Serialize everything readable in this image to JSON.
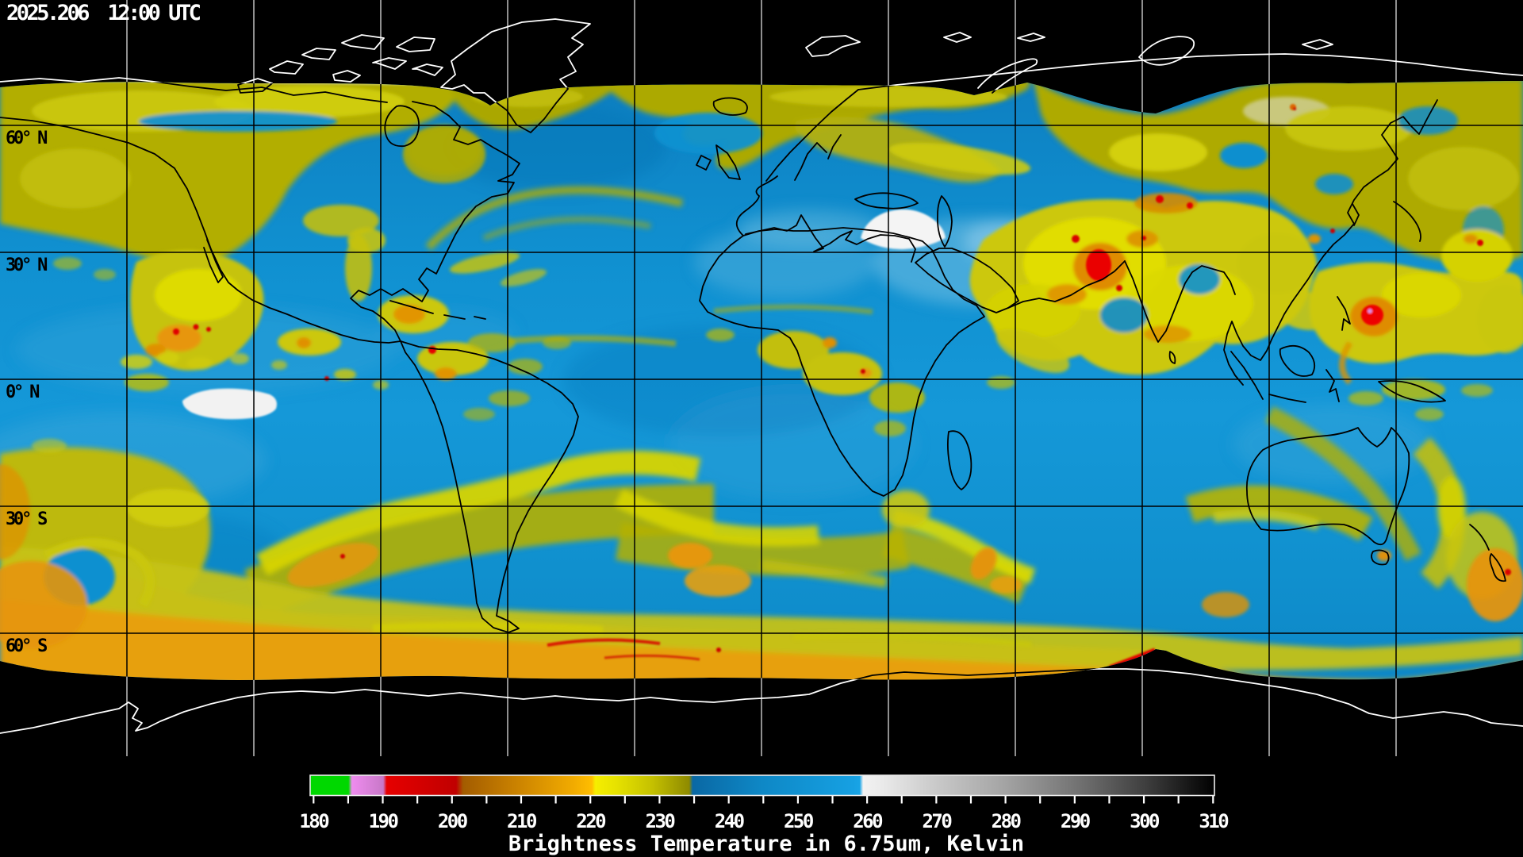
{
  "header": {
    "timestamp": "2025.206  12:00 UTC"
  },
  "map": {
    "lat_labels": [
      {
        "text": "60° N"
      },
      {
        "text": "30° N"
      },
      {
        "text": "0° N"
      },
      {
        "text": "30° S"
      },
      {
        "text": "60° S"
      }
    ]
  },
  "colorbar": {
    "caption": "Brightness Temperature in 6.75um, Kelvin",
    "min": 180,
    "max": 310,
    "minor_step": 5,
    "major_step": 10,
    "tick_labels": [
      "180",
      "190",
      "200",
      "210",
      "220",
      "230",
      "240",
      "250",
      "260",
      "270",
      "280",
      "290",
      "300",
      "310"
    ],
    "palette": [
      {
        "k": 180,
        "color": "#00d800"
      },
      {
        "k": 185.5,
        "color": "#00d800"
      },
      {
        "k": 186,
        "color": "#ee8cee"
      },
      {
        "k": 190.5,
        "color": "#c878c8"
      },
      {
        "k": 191,
        "color": "#e60000"
      },
      {
        "k": 201,
        "color": "#c00000"
      },
      {
        "k": 202,
        "color": "#a35c00"
      },
      {
        "k": 210,
        "color": "#cc8400"
      },
      {
        "k": 218,
        "color": "#f2ac00"
      },
      {
        "k": 220.5,
        "color": "#ffbe00"
      },
      {
        "k": 221,
        "color": "#f6ee00"
      },
      {
        "k": 224,
        "color": "#e6e200"
      },
      {
        "k": 229,
        "color": "#c6c200"
      },
      {
        "k": 234.5,
        "color": "#8e8a00"
      },
      {
        "k": 235,
        "color": "#0a68a4"
      },
      {
        "k": 245,
        "color": "#0e88c6"
      },
      {
        "k": 258,
        "color": "#16a0e2"
      },
      {
        "k": 259,
        "color": "#18a4e6"
      },
      {
        "k": 259.5,
        "color": "#f2f2f2"
      },
      {
        "k": 262,
        "color": "#ebebeb"
      },
      {
        "k": 270,
        "color": "#c9c9c9"
      },
      {
        "k": 280,
        "color": "#a3a3a3"
      },
      {
        "k": 290,
        "color": "#747474"
      },
      {
        "k": 300,
        "color": "#3f3f3f"
      },
      {
        "k": 310,
        "color": "#000000"
      }
    ]
  },
  "colors": {
    "background": "#000000",
    "ocean_dry_blue": "#1090d0",
    "moist_plume_yellow": "#c6c30a",
    "cold_cloud_orange": "#e08800",
    "coldest_cloud_red": "#e60000",
    "very_cold_white": "#f2f2f2",
    "grid_on_map": "#000000",
    "grid_on_space": "#f2f2f2",
    "coastline_on_map": "#000000",
    "coastline_on_space": "#ffffff"
  }
}
